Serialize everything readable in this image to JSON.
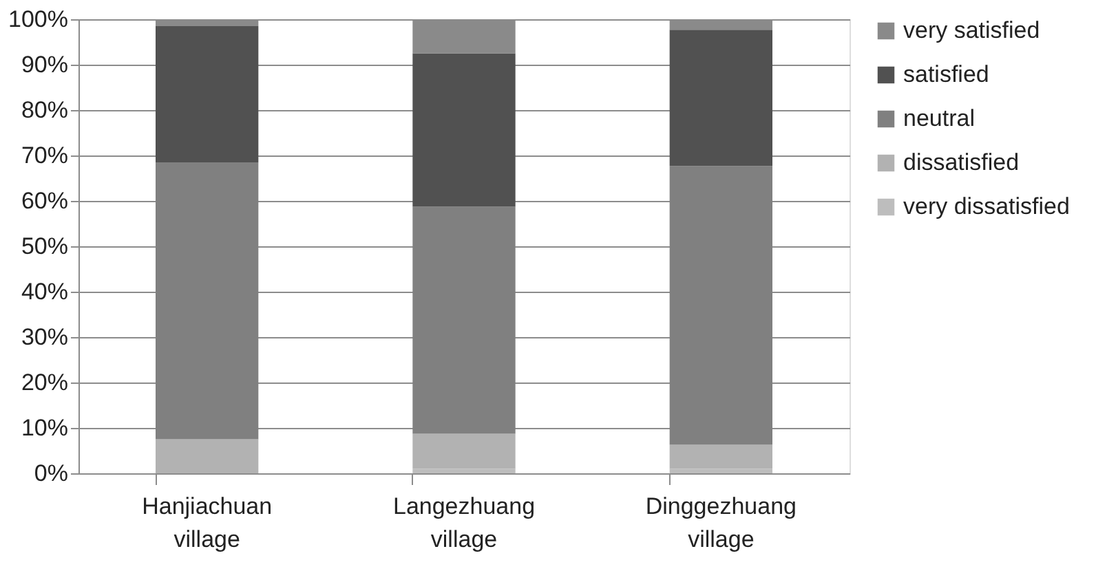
{
  "chart_data": {
    "type": "bar",
    "stacked": true,
    "categories": [
      "Hanjiachuan village",
      "Langezhuang village",
      "Dinggezhuang village"
    ],
    "series": [
      {
        "name": "very dissatisfied",
        "color": "#bdbdbd",
        "values": [
          0,
          1,
          1
        ]
      },
      {
        "name": "dissatisfied",
        "color": "#b2b2b2",
        "values": [
          7.5,
          7.7,
          5.3
        ]
      },
      {
        "name": "neutral",
        "color": "#808080",
        "values": [
          61,
          50,
          61.4
        ]
      },
      {
        "name": "satisfied",
        "color": "#515151",
        "values": [
          30,
          33.8,
          30
        ]
      },
      {
        "name": "very satisfied",
        "color": "#8a8a8a",
        "values": [
          1.5,
          7.5,
          2.3
        ]
      }
    ],
    "ylim": [
      0,
      100
    ],
    "yticks": [
      {
        "value": 0,
        "label": "0%"
      },
      {
        "value": 10,
        "label": "10%"
      },
      {
        "value": 20,
        "label": "20%"
      },
      {
        "value": 30,
        "label": "30%"
      },
      {
        "value": 40,
        "label": "40%"
      },
      {
        "value": 50,
        "label": "50%"
      },
      {
        "value": 60,
        "label": "60%"
      },
      {
        "value": 70,
        "label": "70%"
      },
      {
        "value": 80,
        "label": "80%"
      },
      {
        "value": 90,
        "label": "90%"
      },
      {
        "value": 100,
        "label": "100%"
      }
    ],
    "grid": "y",
    "legend": "right"
  }
}
